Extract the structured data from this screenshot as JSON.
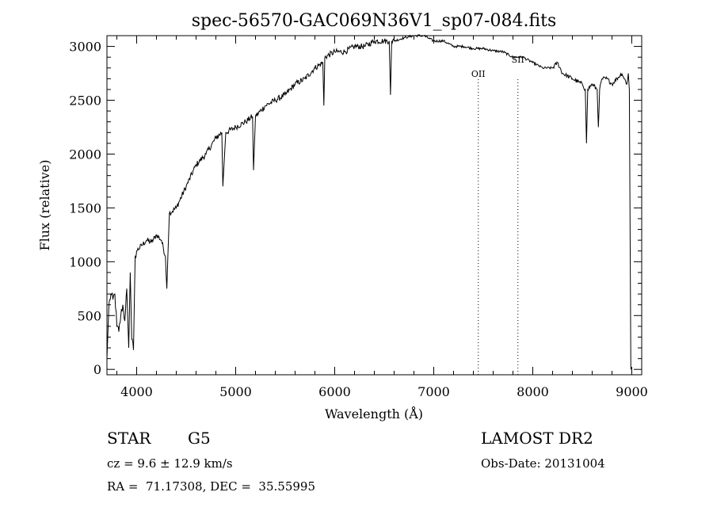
{
  "chart_data": {
    "type": "line",
    "title": "spec-56570-GAC069N36V1_sp07-084.fits",
    "xlabel": "Wavelength (Å)",
    "ylabel": "Flux (relative)",
    "xlim": [
      3700,
      9100
    ],
    "ylim": [
      -50,
      3100
    ],
    "xticks": [
      4000,
      5000,
      6000,
      7000,
      8000,
      9000
    ],
    "yticks": [
      0,
      500,
      1000,
      1500,
      2000,
      2500,
      3000
    ],
    "xtick_labels": [
      "4000",
      "5000",
      "6000",
      "7000",
      "8000",
      "9000"
    ],
    "ytick_labels": [
      "0",
      "500",
      "1000",
      "1500",
      "2000",
      "2500",
      "3000"
    ],
    "grid": false,
    "line_color": "#000000",
    "series": [
      {
        "x": [
          3700,
          3720,
          3740,
          3760,
          3780,
          3800,
          3820,
          3840,
          3860,
          3880,
          3900,
          3920,
          3935,
          3950,
          3968,
          3985,
          4000,
          4050,
          4100,
          4150,
          4200,
          4250,
          4290,
          4305,
          4315,
          4330,
          4400,
          4500,
          4600,
          4700,
          4800,
          4860,
          4870,
          4900,
          5000,
          5100,
          5170,
          5180,
          5200,
          5300,
          5400,
          5500,
          5600,
          5700,
          5800,
          5880,
          5890,
          5900,
          6000,
          6100,
          6200,
          6300,
          6400,
          6500,
          6550,
          6563,
          6575,
          6600,
          6700,
          6800,
          6900,
          7000,
          7100,
          7200,
          7300,
          7400,
          7500,
          7600,
          7700,
          7800,
          7900,
          8000,
          8100,
          8200,
          8250,
          8300,
          8400,
          8500,
          8530,
          8542,
          8555,
          8600,
          8650,
          8662,
          8675,
          8700,
          8750,
          8800,
          8850,
          8900,
          8950,
          8965,
          8975,
          8990
        ],
        "y": [
          100,
          600,
          700,
          650,
          700,
          400,
          350,
          500,
          600,
          450,
          750,
          200,
          900,
          280,
          180,
          1050,
          1100,
          1150,
          1200,
          1180,
          1250,
          1200,
          1050,
          750,
          1050,
          1450,
          1500,
          1700,
          1900,
          2000,
          2150,
          2200,
          1700,
          2200,
          2250,
          2300,
          2350,
          1850,
          2350,
          2450,
          2500,
          2550,
          2650,
          2700,
          2800,
          2850,
          2450,
          2900,
          2950,
          2950,
          3000,
          3000,
          3050,
          3050,
          3050,
          2550,
          3050,
          3050,
          3080,
          3100,
          3100,
          3050,
          3050,
          3000,
          3000,
          2980,
          2980,
          2960,
          2950,
          2900,
          2900,
          2850,
          2800,
          2800,
          2850,
          2750,
          2700,
          2650,
          2600,
          2100,
          2600,
          2650,
          2600,
          2250,
          2600,
          2700,
          2700,
          2650,
          2700,
          2750,
          2650,
          2750,
          2600,
          0
        ]
      }
    ],
    "annotations": [
      {
        "label": "OII",
        "x": 7450
      },
      {
        "label": "SII",
        "x": 7850
      }
    ]
  },
  "info": {
    "object_type": "STAR",
    "subclass": "G5",
    "survey": "LAMOST DR2",
    "redshift": "cz = 9.6 ± 12.9 km/s",
    "obs_date": "Obs-Date: 20131004",
    "coords": "RA =  71.17308, DEC =  35.55995"
  }
}
